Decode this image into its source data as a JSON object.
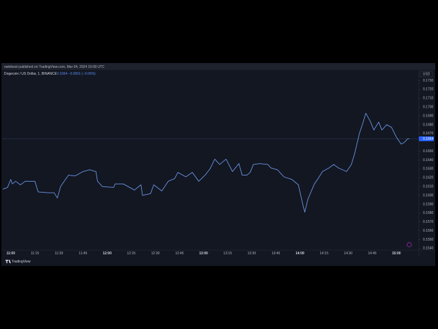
{
  "header": "owlebest published on TradingView.com, Mar 04, 2024 15:08 UTC",
  "footer": "TradingView",
  "chart_data": {
    "type": "line",
    "legend_title": "Dogecoin / US Dollar, 1, BINANCE",
    "legend_values": "0.1664 −0.0001 (−0.06%)",
    "currency": "USD",
    "last_price_label": "0.1664",
    "x": [
      "10:55",
      "10:58",
      "11:00",
      "11:01",
      "11:03",
      "11:06",
      "11:09",
      "11:15",
      "11:17",
      "11:23",
      "11:27",
      "11:29",
      "11:31",
      "11:34",
      "11:36",
      "11:40",
      "11:45",
      "11:49",
      "11:53",
      "11:54",
      "11:57",
      "12:04",
      "12:05",
      "12:10",
      "12:17",
      "12:21",
      "12:22",
      "12:27",
      "12:29",
      "12:34",
      "12:38",
      "12:42",
      "12:44",
      "12:49",
      "12:53",
      "12:57",
      "13:01",
      "13:04",
      "13:07",
      "13:10",
      "13:14",
      "13:18",
      "13:22",
      "13:24",
      "13:27",
      "13:29",
      "13:31",
      "13:35",
      "13:40",
      "13:42",
      "13:46",
      "13:50",
      "13:55",
      "13:59",
      "14:02",
      "14:03",
      "14:05",
      "14:09",
      "14:12",
      "14:14",
      "14:18",
      "14:21",
      "14:24",
      "14:29",
      "14:32",
      "14:34",
      "14:37",
      "14:39",
      "14:41",
      "14:44",
      "14:46",
      "14:49",
      "14:51",
      "14:54",
      "14:57",
      "15:00",
      "15:03",
      "15:05",
      "15:07",
      "15:08"
    ],
    "series": [
      {
        "name": "Dogecoin / US Dollar",
        "color": "#6a96e6",
        "values": [
          0.1607,
          0.1609,
          0.1618,
          0.1613,
          0.1616,
          0.1612,
          0.1616,
          0.1616,
          0.1604,
          0.1603,
          0.1603,
          0.1597,
          0.161,
          0.1618,
          0.1623,
          0.1622,
          0.1627,
          0.1629,
          0.1627,
          0.1616,
          0.161,
          0.1609,
          0.1613,
          0.1613,
          0.1606,
          0.1612,
          0.16,
          0.1602,
          0.1612,
          0.1605,
          0.1616,
          0.1619,
          0.1626,
          0.1621,
          0.1626,
          0.1616,
          0.1623,
          0.163,
          0.1641,
          0.1635,
          0.1641,
          0.1627,
          0.1636,
          0.1623,
          0.1623,
          0.1626,
          0.1635,
          0.1636,
          0.1635,
          0.1631,
          0.1629,
          0.1621,
          0.1618,
          0.1612,
          0.1588,
          0.1581,
          0.1596,
          0.1613,
          0.1621,
          0.1627,
          0.1631,
          0.1635,
          0.1631,
          0.1627,
          0.1635,
          0.1647,
          0.167,
          0.1681,
          0.1693,
          0.1683,
          0.1674,
          0.1683,
          0.1674,
          0.168,
          0.1677,
          0.1666,
          0.1658,
          0.166,
          0.1664,
          0.1664
        ]
      }
    ],
    "xlim": [
      "10:55",
      "15:14"
    ],
    "xticks": [
      "11:00",
      "11:15",
      "11:30",
      "11:45",
      "12:00",
      "12:15",
      "12:30",
      "12:45",
      "13:00",
      "13:15",
      "13:30",
      "13:45",
      "14:00",
      "14:15",
      "14:30",
      "14:45",
      "15:00"
    ],
    "ylim": [
      0.1538,
      0.1742
    ],
    "yticks": [
      {
        "value": 0.154,
        "label": "0.1540"
      },
      {
        "value": 0.155,
        "label": "0.1550"
      },
      {
        "value": 0.156,
        "label": "0.1560"
      },
      {
        "value": 0.157,
        "label": "0.1570"
      },
      {
        "value": 0.158,
        "label": "0.1580"
      },
      {
        "value": 0.159,
        "label": "0.1590"
      },
      {
        "value": 0.16,
        "label": "0.1600"
      },
      {
        "value": 0.161,
        "label": "0.1610"
      },
      {
        "value": 0.162,
        "label": "0.1620"
      },
      {
        "value": 0.163,
        "label": "0.1630"
      },
      {
        "value": 0.164,
        "label": "0.1640"
      },
      {
        "value": 0.165,
        "label": "0.1650"
      },
      {
        "value": 0.167,
        "label": "0.1670"
      },
      {
        "value": 0.168,
        "label": "0.1680"
      },
      {
        "value": 0.169,
        "label": "0.1690"
      },
      {
        "value": 0.17,
        "label": "0.1700"
      },
      {
        "value": 0.171,
        "label": "0.1710"
      },
      {
        "value": 0.172,
        "label": "0.1720"
      },
      {
        "value": 0.173,
        "label": "0.1730"
      }
    ],
    "grid": false
  }
}
